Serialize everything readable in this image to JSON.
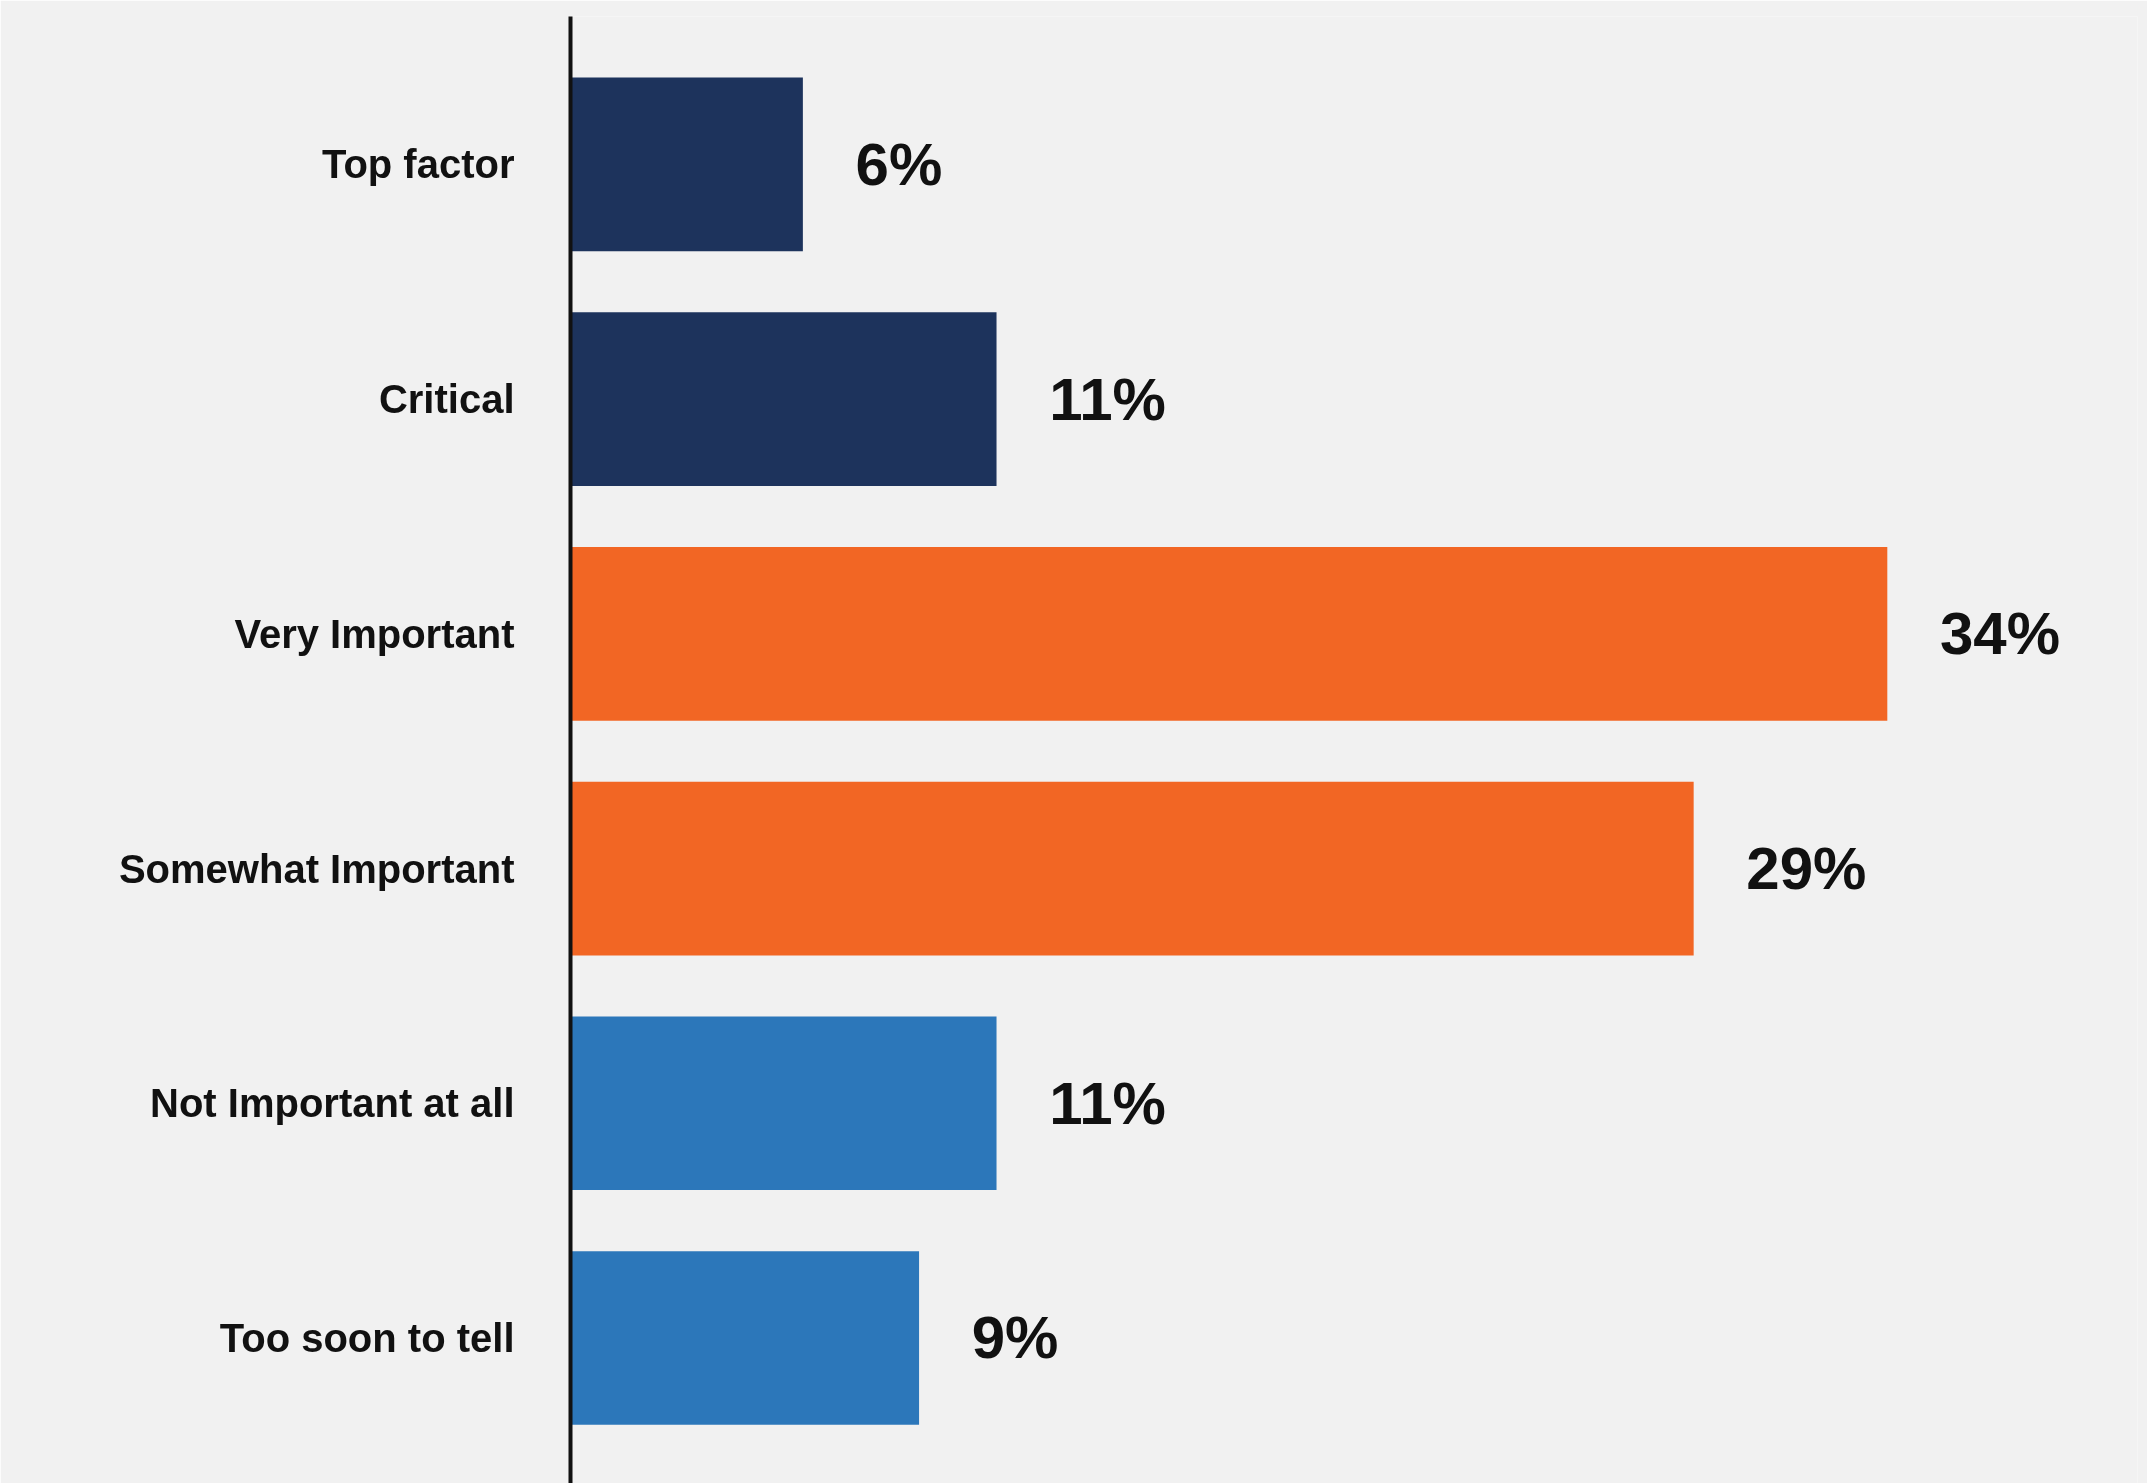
{
  "chart_data": {
    "type": "bar",
    "orientation": "horizontal",
    "categories": [
      "Top factor",
      "Critical",
      "Very Important",
      "Somewhat Important",
      "Not Important at all",
      "Too soon to tell"
    ],
    "values": [
      6,
      11,
      34,
      29,
      11,
      9
    ],
    "colors": [
      "#1d335c",
      "#1d335c",
      "#f26624",
      "#f26624",
      "#2c77ba",
      "#2c77ba"
    ],
    "value_labels": [
      "6%",
      "11%",
      "34%",
      "29%",
      "11%",
      "9%"
    ],
    "grid": false
  }
}
